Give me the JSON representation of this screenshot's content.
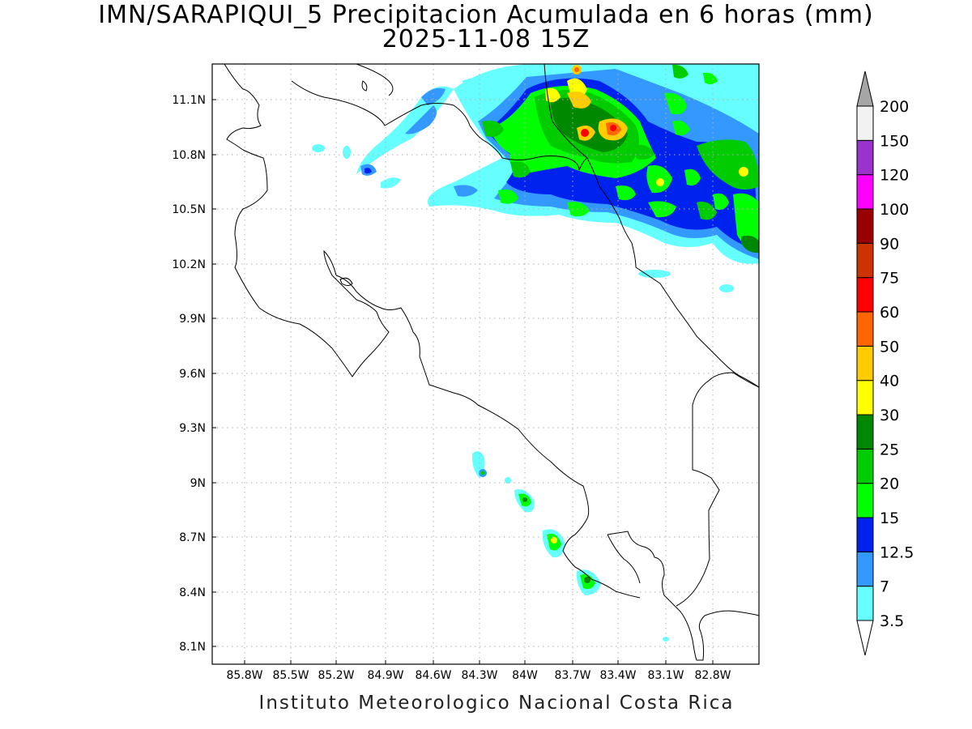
{
  "title": {
    "line1": "IMN/SARAPIQUI_5 Precipitacion Acumulada en 6 horas (mm)",
    "line2": "2025-11-08 15Z"
  },
  "map": {
    "lat_ticks": [
      "11.1N",
      "10.8N",
      "10.5N",
      "10.2N",
      "9.9N",
      "9.6N",
      "9.3N",
      "9N",
      "8.7N",
      "8.4N",
      "8.1N"
    ],
    "lon_ticks": [
      "85.8W",
      "85.5W",
      "85.2W",
      "84.9W",
      "84.6W",
      "84.3W",
      "84W",
      "83.7W",
      "83.4W",
      "83.1W",
      "82.8W"
    ]
  },
  "colorbar": {
    "labels": [
      "3.5",
      "7",
      "12.5",
      "15",
      "20",
      "25",
      "30",
      "40",
      "50",
      "60",
      "75",
      "90",
      "100",
      "120",
      "150",
      "200"
    ],
    "colors": [
      "#66ffff",
      "#3399ff",
      "#0022ee",
      "#00ff00",
      "#00cc00",
      "#008800",
      "#ffff00",
      "#ffcc00",
      "#ff6600",
      "#ff0000",
      "#cc3300",
      "#990000",
      "#ff00ff",
      "#9933cc",
      "#f2f2f2"
    ],
    "top_arrow_color": "#a6a6a6",
    "bottom_arrow_color": "#ffffff"
  },
  "credit": "Instituto Meteorologico Nacional Costa Rica"
}
